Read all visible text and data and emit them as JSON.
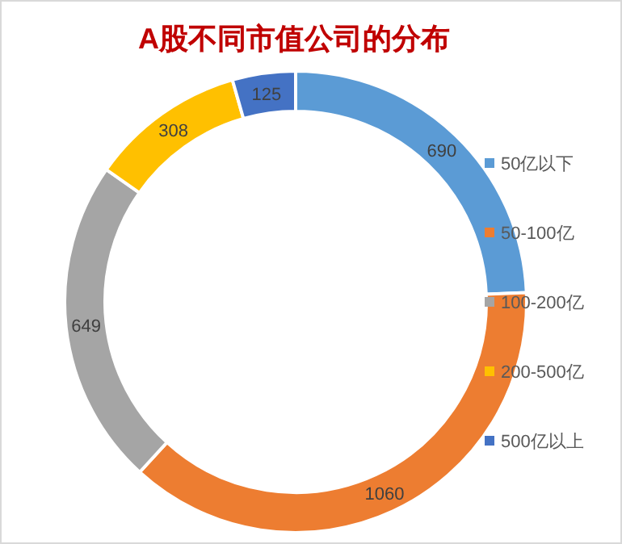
{
  "chart_data": {
    "type": "donut",
    "title": "A股不同市值公司的分布",
    "categories": [
      "50亿以下",
      "50-100亿",
      "100-200亿",
      "200-500亿",
      "500亿以上"
    ],
    "values": [
      690,
      1060,
      649,
      308,
      125
    ],
    "colors": [
      "#5b9bd5",
      "#ed7d31",
      "#a5a5a5",
      "#ffc000",
      "#4472c4"
    ],
    "data_labels": true,
    "legend": "right"
  }
}
